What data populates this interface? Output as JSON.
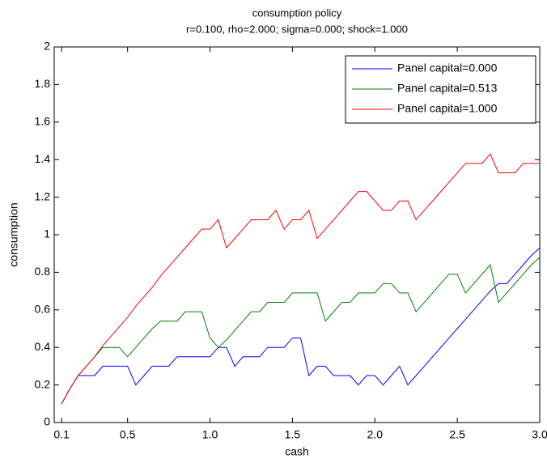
{
  "chart_data": {
    "type": "line",
    "title": "consumption policy",
    "subtitle": "r=0.100, rho=2.000; sigma=0.000; shock=1.000",
    "x_label": "cash",
    "y_label": "consumption",
    "x": [
      0.1,
      0.15,
      0.2,
      0.25,
      0.3,
      0.35,
      0.4,
      0.45,
      0.5,
      0.55,
      0.6,
      0.65,
      0.7,
      0.75,
      0.8,
      0.85,
      0.9,
      0.95,
      1.0,
      1.05,
      1.1,
      1.15,
      1.2,
      1.25,
      1.3,
      1.35,
      1.4,
      1.45,
      1.5,
      1.55,
      1.6,
      1.65,
      1.7,
      1.75,
      1.8,
      1.85,
      1.9,
      1.95,
      2.0,
      2.05,
      2.1,
      2.15,
      2.2,
      2.25,
      2.3,
      2.35,
      2.4,
      2.45,
      2.5,
      2.55,
      2.6,
      2.65,
      2.7,
      2.75,
      2.8,
      2.85,
      2.9,
      2.95,
      3.0
    ],
    "series": [
      {
        "name": "Panel capital=0.000",
        "color": "#0000ff",
        "values": [
          0.1,
          0.18,
          0.25,
          0.25,
          0.25,
          0.3,
          0.3,
          0.3,
          0.3,
          0.2,
          0.25,
          0.3,
          0.3,
          0.3,
          0.35,
          0.35,
          0.35,
          0.35,
          0.35,
          0.4,
          0.4,
          0.3,
          0.35,
          0.35,
          0.35,
          0.4,
          0.4,
          0.4,
          0.45,
          0.45,
          0.25,
          0.3,
          0.3,
          0.25,
          0.25,
          0.25,
          0.2,
          0.25,
          0.25,
          0.2,
          0.25,
          0.3,
          0.2,
          0.25,
          0.3,
          0.35,
          0.4,
          0.45,
          0.5,
          0.55,
          0.6,
          0.65,
          0.7,
          0.74,
          0.74,
          0.79,
          0.84,
          0.89,
          0.93
        ]
      },
      {
        "name": "Panel capital=0.513",
        "color": "#008000",
        "values": [
          0.1,
          0.18,
          0.25,
          0.3,
          0.35,
          0.4,
          0.4,
          0.4,
          0.35,
          0.4,
          0.45,
          0.5,
          0.54,
          0.54,
          0.54,
          0.59,
          0.59,
          0.59,
          0.45,
          0.4,
          0.44,
          0.49,
          0.54,
          0.59,
          0.59,
          0.64,
          0.64,
          0.64,
          0.69,
          0.69,
          0.69,
          0.69,
          0.54,
          0.59,
          0.64,
          0.64,
          0.69,
          0.69,
          0.69,
          0.74,
          0.74,
          0.69,
          0.69,
          0.59,
          0.64,
          0.69,
          0.74,
          0.79,
          0.79,
          0.69,
          0.74,
          0.79,
          0.84,
          0.64,
          0.69,
          0.74,
          0.79,
          0.84,
          0.88
        ]
      },
      {
        "name": "Panel capital=1.000",
        "color": "#ff0000",
        "values": [
          0.1,
          0.18,
          0.25,
          0.3,
          0.35,
          0.41,
          0.46,
          0.51,
          0.56,
          0.62,
          0.67,
          0.72,
          0.78,
          0.83,
          0.88,
          0.93,
          0.98,
          1.03,
          1.03,
          1.08,
          0.93,
          0.98,
          1.03,
          1.08,
          1.08,
          1.08,
          1.13,
          1.03,
          1.08,
          1.08,
          1.13,
          0.98,
          1.03,
          1.08,
          1.13,
          1.18,
          1.23,
          1.23,
          1.18,
          1.13,
          1.13,
          1.18,
          1.18,
          1.08,
          1.13,
          1.18,
          1.23,
          1.28,
          1.33,
          1.38,
          1.38,
          1.38,
          1.43,
          1.33,
          1.33,
          1.33,
          1.38,
          1.38,
          1.38
        ]
      }
    ],
    "xlim": [
      0.055,
      3.0
    ],
    "ylim": [
      0,
      2
    ],
    "xticks": [
      0.1,
      0.5,
      {
        "value": 1.0,
        "label": "1.0"
      },
      1.5,
      {
        "value": 2.0,
        "label": "2.0"
      },
      2.5,
      {
        "value": 3.0,
        "label": "3.0"
      }
    ],
    "yticks": [
      0,
      0.2,
      0.4,
      0.6,
      0.8,
      1,
      1.2,
      1.4,
      1.6,
      1.8,
      2
    ],
    "legend": "upper-right"
  }
}
